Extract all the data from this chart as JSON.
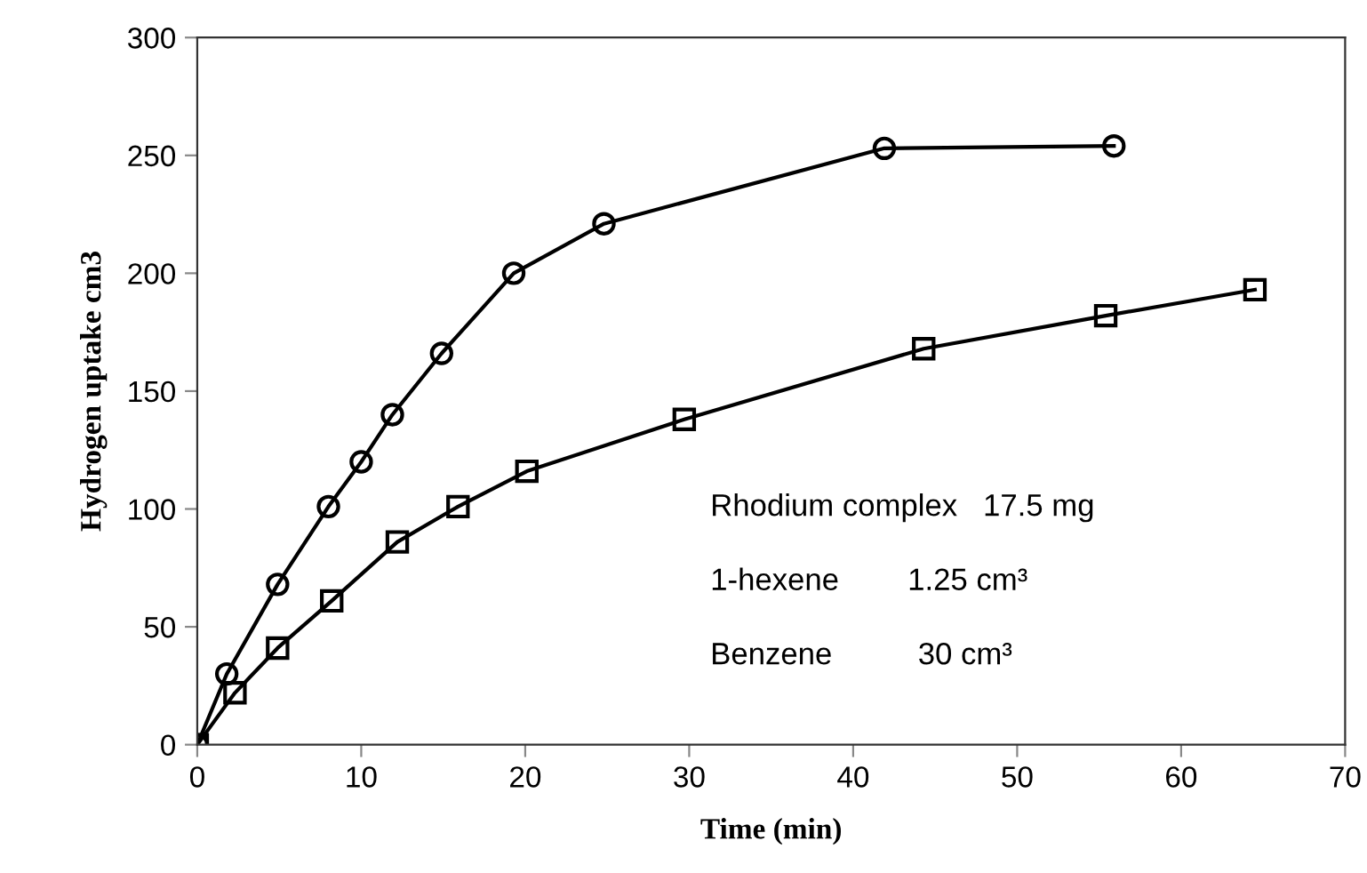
{
  "chart_data": {
    "type": "line",
    "xlabel": "Time (min)",
    "ylabel": "Hydrogen uptake cm3",
    "xlim": [
      0,
      70
    ],
    "xticks": [
      0,
      10,
      20,
      30,
      40,
      50,
      60,
      70
    ],
    "ylim": [
      0,
      300
    ],
    "yticks": [
      0,
      50,
      100,
      150,
      200,
      250,
      300
    ],
    "grid": false,
    "legend": false,
    "series": [
      {
        "color": "#000000",
        "marker": "circle",
        "x": [
          0,
          1.8,
          4.9,
          8.0,
          10.0,
          11.9,
          14.9,
          19.3,
          24.8,
          41.9,
          55.9
        ],
        "values": [
          0,
          30,
          68,
          101,
          120,
          140,
          166,
          200,
          221,
          253,
          254
        ]
      },
      {
        "color": "#000000",
        "marker": "square",
        "x": [
          0,
          2.3,
          4.9,
          8.2,
          12.2,
          15.9,
          20.1,
          29.7,
          44.3,
          55.4,
          64.5
        ],
        "values": [
          0,
          22,
          41,
          61,
          86,
          101,
          116,
          138,
          168,
          182,
          193
        ]
      }
    ],
    "annotations": [
      "Rhodium complex   17.5 mg",
      "1-hexene        1.25 cm³",
      "Benzene          30 cm³"
    ]
  }
}
